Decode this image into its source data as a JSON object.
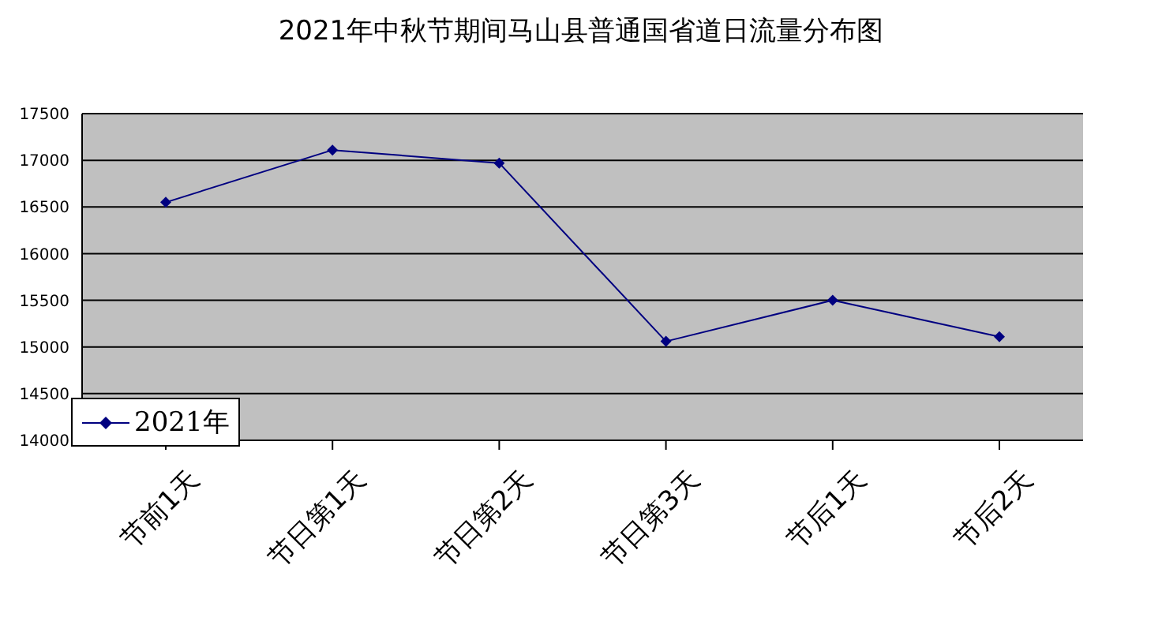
{
  "chart_data": {
    "type": "line",
    "title": "2021年中秋节期间马山县普通国省道日流量分布图",
    "categories": [
      "节前1天",
      "节日第1天",
      "节日第2天",
      "节日第3天",
      "节后1天",
      "节后2天"
    ],
    "series": [
      {
        "name": "2021年",
        "color": "#000080",
        "values": [
          16550,
          17110,
          16970,
          15060,
          15500,
          15110
        ]
      }
    ],
    "ylim": [
      14000,
      17500
    ],
    "yticks": [
      14000,
      14500,
      15000,
      15500,
      16000,
      16500,
      17000,
      17500
    ],
    "grid": "y",
    "legend": "bottom left",
    "marker": "diamond",
    "line_style": "solid"
  }
}
